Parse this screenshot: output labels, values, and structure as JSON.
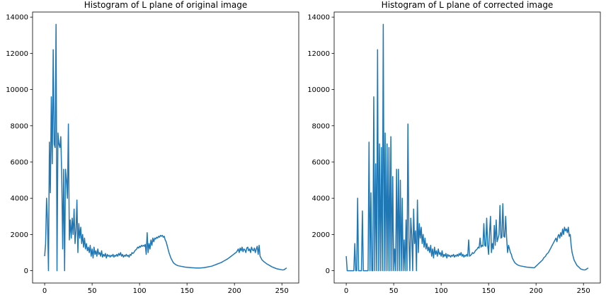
{
  "chart_data": [
    {
      "type": "line",
      "title": "Histogram of L plane of original image",
      "color": "#1f77b4",
      "xlim": [
        -12.75,
        267.75
      ],
      "ylim": [
        -680,
        14280
      ],
      "xticks": [
        0,
        50,
        100,
        150,
        200,
        250
      ],
      "yticks": [
        0,
        2000,
        4000,
        6000,
        8000,
        10000,
        12000,
        14000
      ],
      "x": [
        0,
        1,
        2,
        3,
        4,
        5,
        6,
        7,
        8,
        9,
        10,
        11,
        12,
        13,
        14,
        15,
        16,
        17,
        18,
        19,
        20,
        21,
        22,
        23,
        24,
        25,
        26,
        27,
        28,
        29,
        30,
        31,
        32,
        33,
        34,
        35,
        36,
        37,
        38,
        39,
        40,
        41,
        42,
        43,
        44,
        45,
        46,
        47,
        48,
        49,
        50,
        51,
        52,
        53,
        54,
        55,
        56,
        57,
        58,
        59,
        60,
        61,
        62,
        63,
        64,
        65,
        66,
        67,
        68,
        69,
        70,
        71,
        72,
        73,
        74,
        75,
        76,
        77,
        78,
        79,
        80,
        81,
        82,
        83,
        84,
        85,
        86,
        87,
        88,
        89,
        90,
        91,
        92,
        93,
        94,
        95,
        96,
        97,
        98,
        99,
        100,
        101,
        102,
        103,
        104,
        105,
        106,
        107,
        108,
        109,
        110,
        111,
        112,
        113,
        114,
        115,
        116,
        117,
        118,
        119,
        120,
        121,
        122,
        123,
        124,
        125,
        126,
        127,
        128,
        129,
        130,
        131,
        132,
        133,
        134,
        135,
        136,
        137,
        138,
        139,
        140,
        141,
        142,
        143,
        144,
        145,
        146,
        147,
        148,
        149,
        150,
        151,
        152,
        153,
        154,
        155,
        156,
        157,
        158,
        159,
        160,
        161,
        162,
        163,
        164,
        165,
        166,
        167,
        168,
        169,
        170,
        171,
        172,
        173,
        174,
        175,
        176,
        177,
        178,
        179,
        180,
        181,
        182,
        183,
        184,
        185,
        186,
        187,
        188,
        189,
        190,
        191,
        192,
        193,
        194,
        195,
        196,
        197,
        198,
        199,
        200,
        201,
        202,
        203,
        204,
        205,
        206,
        207,
        208,
        209,
        210,
        211,
        212,
        213,
        214,
        215,
        216,
        217,
        218,
        219,
        220,
        221,
        222,
        223,
        224,
        225,
        226,
        227,
        228,
        229,
        230,
        231,
        232,
        233,
        234,
        235,
        236,
        237,
        238,
        239,
        240,
        241,
        242,
        243,
        244,
        245,
        246,
        247,
        248,
        249,
        250,
        251,
        252,
        253,
        254,
        255
      ],
      "values": [
        800,
        1500,
        4000,
        2800,
        0,
        7100,
        4300,
        9600,
        5900,
        12200,
        7000,
        6800,
        13600,
        0,
        7600,
        7000,
        6800,
        7400,
        5200,
        1200,
        5600,
        0,
        5600,
        5000,
        4000,
        8100,
        1700,
        2800,
        1800,
        2900,
        2000,
        3400,
        1500,
        2200,
        3900,
        1000,
        2600,
        1800,
        2400,
        1500,
        2000,
        1300,
        1800,
        1200,
        1500,
        1100,
        1300,
        1000,
        1400,
        800,
        1200,
        700,
        1300,
        900,
        1100,
        800,
        1200,
        900,
        1000,
        800,
        1100,
        750,
        900,
        800,
        950,
        700,
        900,
        800,
        850,
        750,
        850,
        800,
        900,
        750,
        850,
        800,
        900,
        800,
        950,
        850,
        1000,
        800,
        900,
        750,
        850,
        800,
        900,
        800,
        850,
        750,
        900,
        850,
        1000,
        950,
        1000,
        1100,
        1150,
        1200,
        1300,
        1250,
        1350,
        1300,
        1400,
        1350,
        1400,
        1350,
        1450,
        900,
        2100,
        1000,
        1500,
        1200,
        1700,
        1400,
        1800,
        1600,
        1800,
        1750,
        1850,
        1800,
        1900,
        1850,
        1950,
        1900,
        1950,
        1850,
        1900,
        1700,
        1600,
        1400,
        1200,
        1000,
        850,
        700,
        600,
        500,
        420,
        380,
        340,
        310,
        290,
        270,
        260,
        250,
        240,
        230,
        220,
        210,
        200,
        195,
        190,
        185,
        180,
        175,
        170,
        165,
        160,
        160,
        155,
        150,
        150,
        150,
        145,
        150,
        150,
        155,
        160,
        165,
        170,
        180,
        190,
        200,
        210,
        220,
        230,
        240,
        250,
        270,
        290,
        310,
        330,
        350,
        370,
        390,
        410,
        430,
        450,
        480,
        510,
        540,
        570,
        600,
        630,
        660,
        700,
        740,
        780,
        820,
        860,
        900,
        940,
        980,
        1020,
        1100,
        1200,
        1000,
        1250,
        1100,
        1300,
        1050,
        1200,
        1150,
        1000,
        1250,
        1300,
        1100,
        1200,
        1000,
        1300,
        1150,
        1100,
        1250,
        1000,
        1200,
        1350,
        900,
        1400,
        800,
        700,
        600,
        550,
        500,
        460,
        420,
        380,
        350,
        320,
        290,
        260,
        230,
        200,
        180,
        160,
        140,
        120,
        100,
        90,
        80,
        70,
        60,
        50,
        40,
        50,
        80,
        120,
        150
      ]
    },
    {
      "type": "line",
      "title": "Histogram of L plane of corrected image",
      "color": "#1f77b4",
      "xlim": [
        -12.75,
        267.75
      ],
      "ylim": [
        -680,
        14280
      ],
      "xticks": [
        0,
        50,
        100,
        150,
        200,
        250
      ],
      "yticks": [
        0,
        2000,
        4000,
        6000,
        8000,
        10000,
        12000,
        14000
      ],
      "x": [
        0,
        1,
        2,
        3,
        4,
        5,
        6,
        7,
        8,
        9,
        10,
        11,
        12,
        13,
        14,
        15,
        16,
        17,
        18,
        19,
        20,
        21,
        22,
        23,
        24,
        25,
        26,
        27,
        28,
        29,
        30,
        31,
        32,
        33,
        34,
        35,
        36,
        37,
        38,
        39,
        40,
        41,
        42,
        43,
        44,
        45,
        46,
        47,
        48,
        49,
        50,
        51,
        52,
        53,
        54,
        55,
        56,
        57,
        58,
        59,
        60,
        61,
        62,
        63,
        64,
        65,
        66,
        67,
        68,
        69,
        70,
        71,
        72,
        73,
        74,
        75,
        76,
        77,
        78,
        79,
        80,
        81,
        82,
        83,
        84,
        85,
        86,
        87,
        88,
        89,
        90,
        91,
        92,
        93,
        94,
        95,
        96,
        97,
        98,
        99,
        100,
        101,
        102,
        103,
        104,
        105,
        106,
        107,
        108,
        109,
        110,
        111,
        112,
        113,
        114,
        115,
        116,
        117,
        118,
        119,
        120,
        121,
        122,
        123,
        124,
        125,
        126,
        127,
        128,
        129,
        130,
        131,
        132,
        133,
        134,
        135,
        136,
        137,
        138,
        139,
        140,
        141,
        142,
        143,
        144,
        145,
        146,
        147,
        148,
        149,
        150,
        151,
        152,
        153,
        154,
        155,
        156,
        157,
        158,
        159,
        160,
        161,
        162,
        163,
        164,
        165,
        166,
        167,
        168,
        169,
        170,
        171,
        172,
        173,
        174,
        175,
        176,
        177,
        178,
        179,
        180,
        181,
        182,
        183,
        184,
        185,
        186,
        187,
        188,
        189,
        190,
        191,
        192,
        193,
        194,
        195,
        196,
        197,
        198,
        199,
        200,
        201,
        202,
        203,
        204,
        205,
        206,
        207,
        208,
        209,
        210,
        211,
        212,
        213,
        214,
        215,
        216,
        217,
        218,
        219,
        220,
        221,
        222,
        223,
        224,
        225,
        226,
        227,
        228,
        229,
        230,
        231,
        232,
        233,
        234,
        235,
        236,
        237,
        238,
        239,
        240,
        241,
        242,
        243,
        244,
        245,
        246,
        247,
        248,
        249,
        250,
        251,
        252,
        253,
        254,
        255
      ],
      "values": [
        800,
        0,
        0,
        0,
        0,
        0,
        0,
        0,
        0,
        1500,
        0,
        0,
        4000,
        0,
        0,
        0,
        0,
        3300,
        0,
        0,
        0,
        0,
        0,
        0,
        7100,
        0,
        4300,
        0,
        0,
        9600,
        0,
        5900,
        0,
        12200,
        0,
        7000,
        0,
        6800,
        0,
        13600,
        0,
        7600,
        0,
        7000,
        0,
        6800,
        0,
        7400,
        0,
        5200,
        0,
        1200,
        0,
        5600,
        0,
        5600,
        0,
        5000,
        0,
        4000,
        0,
        1700,
        0,
        2800,
        0,
        8100,
        1800,
        0,
        2900,
        2000,
        0,
        3400,
        1500,
        2200,
        0,
        3900,
        1000,
        2600,
        1800,
        2400,
        1500,
        2000,
        1300,
        1800,
        1200,
        1500,
        1100,
        1300,
        1000,
        1400,
        800,
        1200,
        700,
        1300,
        900,
        1100,
        800,
        1200,
        900,
        1000,
        800,
        1100,
        750,
        900,
        800,
        950,
        700,
        900,
        800,
        850,
        750,
        850,
        800,
        900,
        750,
        850,
        800,
        900,
        800,
        950,
        850,
        1000,
        800,
        900,
        750,
        850,
        800,
        900,
        800,
        1700,
        800,
        850,
        900,
        1000,
        950,
        1000,
        1100,
        1150,
        1200,
        1300,
        1250,
        1800,
        1300,
        1400,
        1350,
        2600,
        1400,
        1350,
        2900,
        1450,
        900,
        2100,
        3000,
        1000,
        1500,
        1200,
        2500,
        1400,
        2800,
        1600,
        1800,
        2000,
        3600,
        1800,
        1850,
        3700,
        1900,
        1850,
        3000,
        1800,
        1000,
        1400,
        1200,
        1000,
        900,
        700,
        600,
        500,
        420,
        380,
        340,
        310,
        290,
        270,
        260,
        250,
        240,
        230,
        220,
        210,
        200,
        195,
        190,
        185,
        180,
        175,
        170,
        165,
        160,
        200,
        250,
        300,
        350,
        400,
        450,
        500,
        550,
        600,
        700,
        750,
        800,
        900,
        950,
        1000,
        1100,
        1200,
        1300,
        1400,
        1500,
        1600,
        1700,
        1800,
        1600,
        1900,
        2000,
        1800,
        2100,
        1900,
        2300,
        2000,
        2400,
        2200,
        2300,
        2100,
        2400,
        1900,
        2000,
        1400,
        1000,
        800,
        600,
        500,
        400,
        300,
        250,
        200,
        150,
        100,
        80,
        60,
        50,
        40,
        50,
        80,
        120,
        150
      ]
    }
  ]
}
